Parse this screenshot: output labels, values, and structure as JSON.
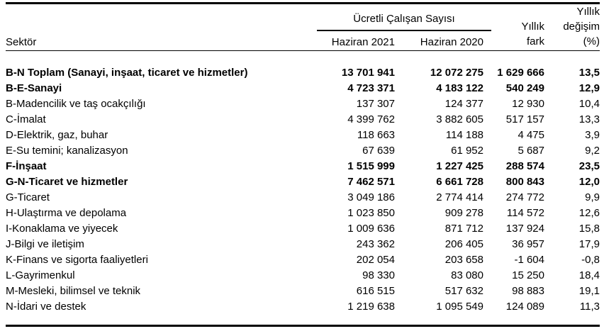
{
  "header": {
    "group_title": "Ücretli Çalışan Sayısı",
    "sektor": "Sektör",
    "h2021": "Haziran 2021",
    "h2020": "Haziran 2020",
    "fark": [
      "Yıllık",
      "fark"
    ],
    "degisim": [
      "Yıllık",
      "değişim",
      "(%)"
    ]
  },
  "rows": [
    {
      "sektor": "B-N Toplam (Sanayi, inşaat, ticaret ve hizmetler)",
      "h2021": "13 701 941",
      "h2020": "12 072 275",
      "fark": "1 629 666",
      "degisim": "13,5",
      "bold": true
    },
    {
      "sektor": "B-E-Sanayi",
      "h2021": "4 723 371",
      "h2020": "4 183 122",
      "fark": "540 249",
      "degisim": "12,9",
      "bold": true
    },
    {
      "sektor": "B-Madencilik ve taş ocakçılığı",
      "h2021": "137 307",
      "h2020": "124 377",
      "fark": "12 930",
      "degisim": "10,4",
      "bold": false
    },
    {
      "sektor": "C-İmalat",
      "h2021": "4 399 762",
      "h2020": "3 882 605",
      "fark": "517 157",
      "degisim": "13,3",
      "bold": false
    },
    {
      "sektor": "D-Elektrik, gaz, buhar",
      "h2021": "118 663",
      "h2020": "114 188",
      "fark": "4 475",
      "degisim": "3,9",
      "bold": false
    },
    {
      "sektor": "E-Su temini; kanalizasyon",
      "h2021": "67 639",
      "h2020": "61 952",
      "fark": "5 687",
      "degisim": "9,2",
      "bold": false
    },
    {
      "sektor": "F-İnşaat",
      "h2021": "1 515 999",
      "h2020": "1 227 425",
      "fark": "288 574",
      "degisim": "23,5",
      "bold": true
    },
    {
      "sektor": "G-N-Ticaret ve hizmetler",
      "h2021": "7 462 571",
      "h2020": "6 661 728",
      "fark": "800 843",
      "degisim": "12,0",
      "bold": true
    },
    {
      "sektor": "G-Ticaret",
      "h2021": "3 049 186",
      "h2020": "2 774 414",
      "fark": "274 772",
      "degisim": "9,9",
      "bold": false
    },
    {
      "sektor": "H-Ulaştırma ve depolama",
      "h2021": "1 023 850",
      "h2020": "909 278",
      "fark": "114 572",
      "degisim": "12,6",
      "bold": false
    },
    {
      "sektor": "I-Konaklama ve yiyecek",
      "h2021": "1 009 636",
      "h2020": "871 712",
      "fark": "137 924",
      "degisim": "15,8",
      "bold": false
    },
    {
      "sektor": "J-Bilgi ve iletişim",
      "h2021": "243 362",
      "h2020": "206 405",
      "fark": "36 957",
      "degisim": "17,9",
      "bold": false
    },
    {
      "sektor": "K-Finans ve sigorta faaliyetleri",
      "h2021": "202 054",
      "h2020": "203 658",
      "fark": "-1 604",
      "degisim": "-0,8",
      "bold": false
    },
    {
      "sektor": "L-Gayrimenkul",
      "h2021": "98 330",
      "h2020": "83 080",
      "fark": "15 250",
      "degisim": "18,4",
      "bold": false
    },
    {
      "sektor": "M-Mesleki, bilimsel ve teknik",
      "h2021": "616 515",
      "h2020": "517 632",
      "fark": "98 883",
      "degisim": "19,1",
      "bold": false
    },
    {
      "sektor": "N-İdari ve destek",
      "h2021": "1 219 638",
      "h2020": "1 095 549",
      "fark": "124 089",
      "degisim": "11,3",
      "bold": false
    }
  ],
  "colors": {
    "text": "#000000",
    "background": "#ffffff",
    "rule": "#000000"
  }
}
